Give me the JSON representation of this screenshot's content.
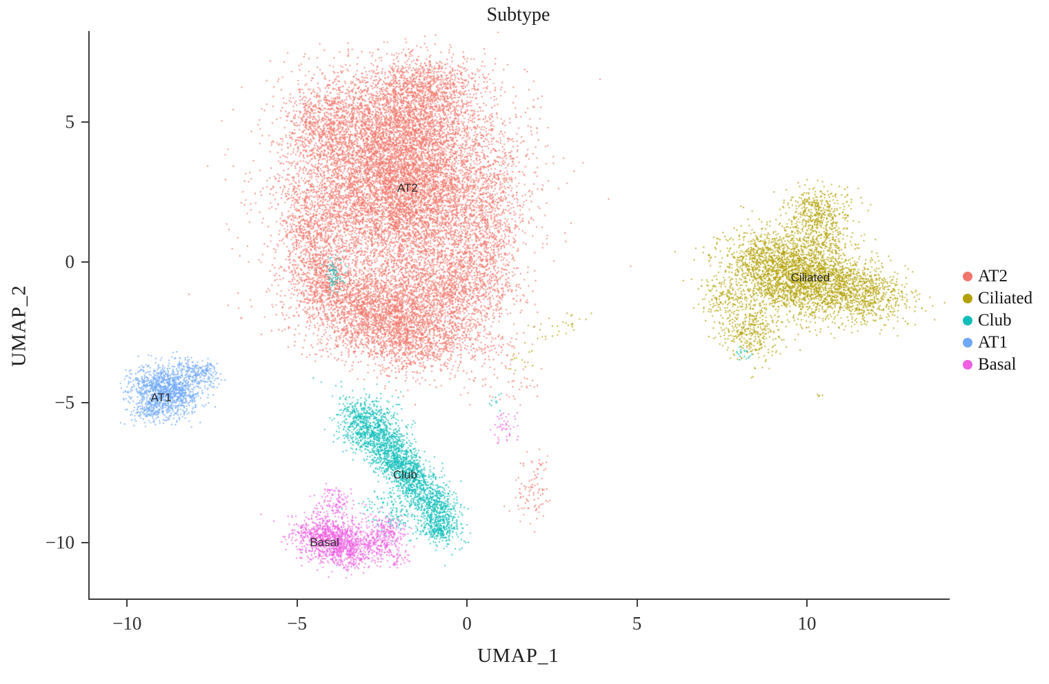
{
  "title": "Subtype",
  "axes": {
    "x_label": "UMAP_1",
    "y_label": "UMAP_2"
  },
  "chart_data": {
    "type": "scatter",
    "title": "Subtype",
    "xlabel": "UMAP_1",
    "ylabel": "UMAP_2",
    "xlim": [
      -11.1,
      14.2
    ],
    "ylim": [
      -12.0,
      8.25
    ],
    "x_ticks": [
      -10,
      -5,
      0,
      5,
      10
    ],
    "y_ticks": [
      5,
      0,
      -5,
      -10
    ],
    "grid": false,
    "legend_position": "right",
    "legend_items": [
      "AT2",
      "Ciliated",
      "Club",
      "AT1",
      "Basal"
    ],
    "point_radius_px": 1.1,
    "clusters": [
      {
        "name": "AT2",
        "color": "#F1766B",
        "label_pos": [
          -1.75,
          2.65
        ],
        "approx_center": [
          -2.0,
          2.3
        ],
        "blobs": [
          [
            -2.0,
            2.8,
            1.55,
            1.75,
            0,
            9000
          ],
          [
            -1.1,
            6.3,
            0.8,
            0.55,
            0,
            700
          ],
          [
            -2.1,
            5.2,
            1.2,
            0.8,
            0,
            1200
          ],
          [
            -4.3,
            4.9,
            0.5,
            0.8,
            0,
            500
          ],
          [
            -4.6,
            0.9,
            0.45,
            0.8,
            0,
            500
          ],
          [
            -4.2,
            -0.6,
            0.5,
            0.6,
            0,
            400
          ],
          [
            -2.6,
            -1.7,
            1.2,
            0.75,
            -10,
            2500
          ],
          [
            -1.6,
            -2.9,
            1.0,
            0.6,
            0,
            900
          ],
          [
            -0.4,
            -0.9,
            0.9,
            0.9,
            0,
            1200
          ],
          [
            0.6,
            1.2,
            0.5,
            1.2,
            0,
            500
          ],
          [
            0.9,
            -3.2,
            0.6,
            0.7,
            0,
            60
          ],
          [
            1.5,
            -4.3,
            0.4,
            0.5,
            0,
            25
          ],
          [
            1.9,
            -8.3,
            0.25,
            0.5,
            0,
            80
          ],
          [
            2.1,
            -7.2,
            0.15,
            0.2,
            0,
            15
          ]
        ]
      },
      {
        "name": "Ciliated",
        "color": "#B2A100",
        "label_pos": [
          10.1,
          -0.55
        ],
        "approx_center": [
          9.9,
          -0.9
        ],
        "blobs": [
          [
            9.7,
            -0.6,
            1.05,
            0.65,
            -15,
            2200
          ],
          [
            11.6,
            -1.1,
            0.75,
            0.5,
            -20,
            700
          ],
          [
            10.3,
            0.9,
            0.45,
            0.7,
            0,
            450
          ],
          [
            10.4,
            1.9,
            0.5,
            0.4,
            0,
            250
          ],
          [
            8.9,
            0.3,
            0.7,
            0.5,
            0,
            350
          ],
          [
            8.3,
            -2.5,
            0.45,
            0.55,
            0,
            350
          ],
          [
            7.6,
            -1.3,
            0.4,
            0.4,
            0,
            150
          ],
          [
            2.6,
            -2.4,
            0.5,
            0.25,
            20,
            25
          ],
          [
            1.6,
            -3.3,
            0.3,
            0.3,
            0,
            12
          ],
          [
            10.4,
            -4.8,
            0.05,
            0.05,
            0,
            4
          ],
          [
            3.1,
            -2.2,
            0.1,
            0.1,
            0,
            6
          ]
        ]
      },
      {
        "name": "Club",
        "color": "#10BEB9",
        "label_pos": [
          -1.82,
          -7.6
        ],
        "approx_center": [
          -1.9,
          -7.4
        ],
        "blobs": [
          [
            -1.85,
            -7.4,
            1.15,
            0.33,
            -57,
            1600
          ],
          [
            -2.9,
            -5.8,
            0.5,
            0.45,
            -45,
            600
          ],
          [
            -0.85,
            -8.9,
            0.3,
            0.5,
            0,
            350
          ],
          [
            -0.8,
            -9.6,
            0.25,
            0.2,
            0,
            150
          ],
          [
            -2.2,
            -9.0,
            0.5,
            0.3,
            -40,
            120
          ],
          [
            -3.9,
            -0.45,
            0.12,
            0.3,
            0,
            70
          ],
          [
            8.15,
            -3.25,
            0.12,
            0.12,
            0,
            18
          ],
          [
            0.9,
            -4.9,
            0.15,
            0.25,
            0,
            10
          ]
        ]
      },
      {
        "name": "AT1",
        "color": "#6FA8F8",
        "label_pos": [
          -9.0,
          -4.85
        ],
        "approx_center": [
          -8.8,
          -4.6
        ],
        "blobs": [
          [
            -8.85,
            -4.6,
            0.5,
            0.42,
            -20,
            1200
          ],
          [
            -8.0,
            -3.9,
            0.35,
            0.2,
            -20,
            200
          ],
          [
            -9.3,
            -5.3,
            0.3,
            0.25,
            0,
            150
          ],
          [
            -7.6,
            -3.75,
            0.12,
            0.1,
            0,
            30
          ]
        ]
      },
      {
        "name": "Basal",
        "color": "#EE5FE1",
        "label_pos": [
          -4.19,
          -10.0
        ],
        "approx_center": [
          -3.8,
          -10.0
        ],
        "blobs": [
          [
            -4.0,
            -9.9,
            0.55,
            0.42,
            -15,
            1100
          ],
          [
            -3.0,
            -10.2,
            0.5,
            0.3,
            20,
            300
          ],
          [
            -2.4,
            -9.6,
            0.3,
            0.35,
            0,
            180
          ],
          [
            -3.9,
            -8.6,
            0.3,
            0.3,
            0,
            120
          ],
          [
            1.1,
            -5.9,
            0.2,
            0.3,
            0,
            45
          ],
          [
            -2.0,
            -10.6,
            0.2,
            0.15,
            0,
            40
          ]
        ]
      }
    ]
  }
}
